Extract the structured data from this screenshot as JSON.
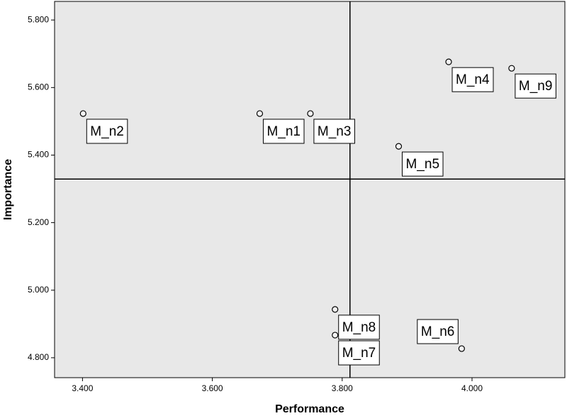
{
  "chart_data": {
    "type": "scatter",
    "x_label": "Performance",
    "y_label": "Importance",
    "labels": [
      "M_n2",
      "M_n1",
      "M_n3",
      "M_n4",
      "M_n9",
      "M_n5",
      "M_n8",
      "M_n7",
      "M_n6"
    ],
    "x": [
      3.401,
      3.673,
      3.751,
      3.964,
      4.061,
      3.887,
      3.789,
      3.789,
      3.984
    ],
    "values": [
      5.523,
      5.523,
      5.523,
      5.676,
      5.657,
      5.426,
      4.943,
      4.867,
      4.827
    ],
    "reference_lines": {
      "x": 3.812,
      "y": 5.329
    },
    "xlim": [
      3.357,
      4.143
    ],
    "ylim": [
      4.741,
      5.855
    ],
    "xticks": [
      {
        "value": 3.4,
        "label": "3.400"
      },
      {
        "value": 3.6,
        "label": "3.600"
      },
      {
        "value": 3.8,
        "label": "3.800"
      },
      {
        "value": 4.0,
        "label": "4.000"
      }
    ],
    "yticks": [
      {
        "value": 4.8,
        "label": "4.800"
      },
      {
        "value": 5.0,
        "label": "5.000"
      },
      {
        "value": 5.2,
        "label": "5.200"
      },
      {
        "value": 5.4,
        "label": "5.400"
      },
      {
        "value": 5.6,
        "label": "5.600"
      },
      {
        "value": 5.8,
        "label": "5.800"
      }
    ],
    "plot_background": "#e8e8e8",
    "marker_color": "#000000"
  }
}
